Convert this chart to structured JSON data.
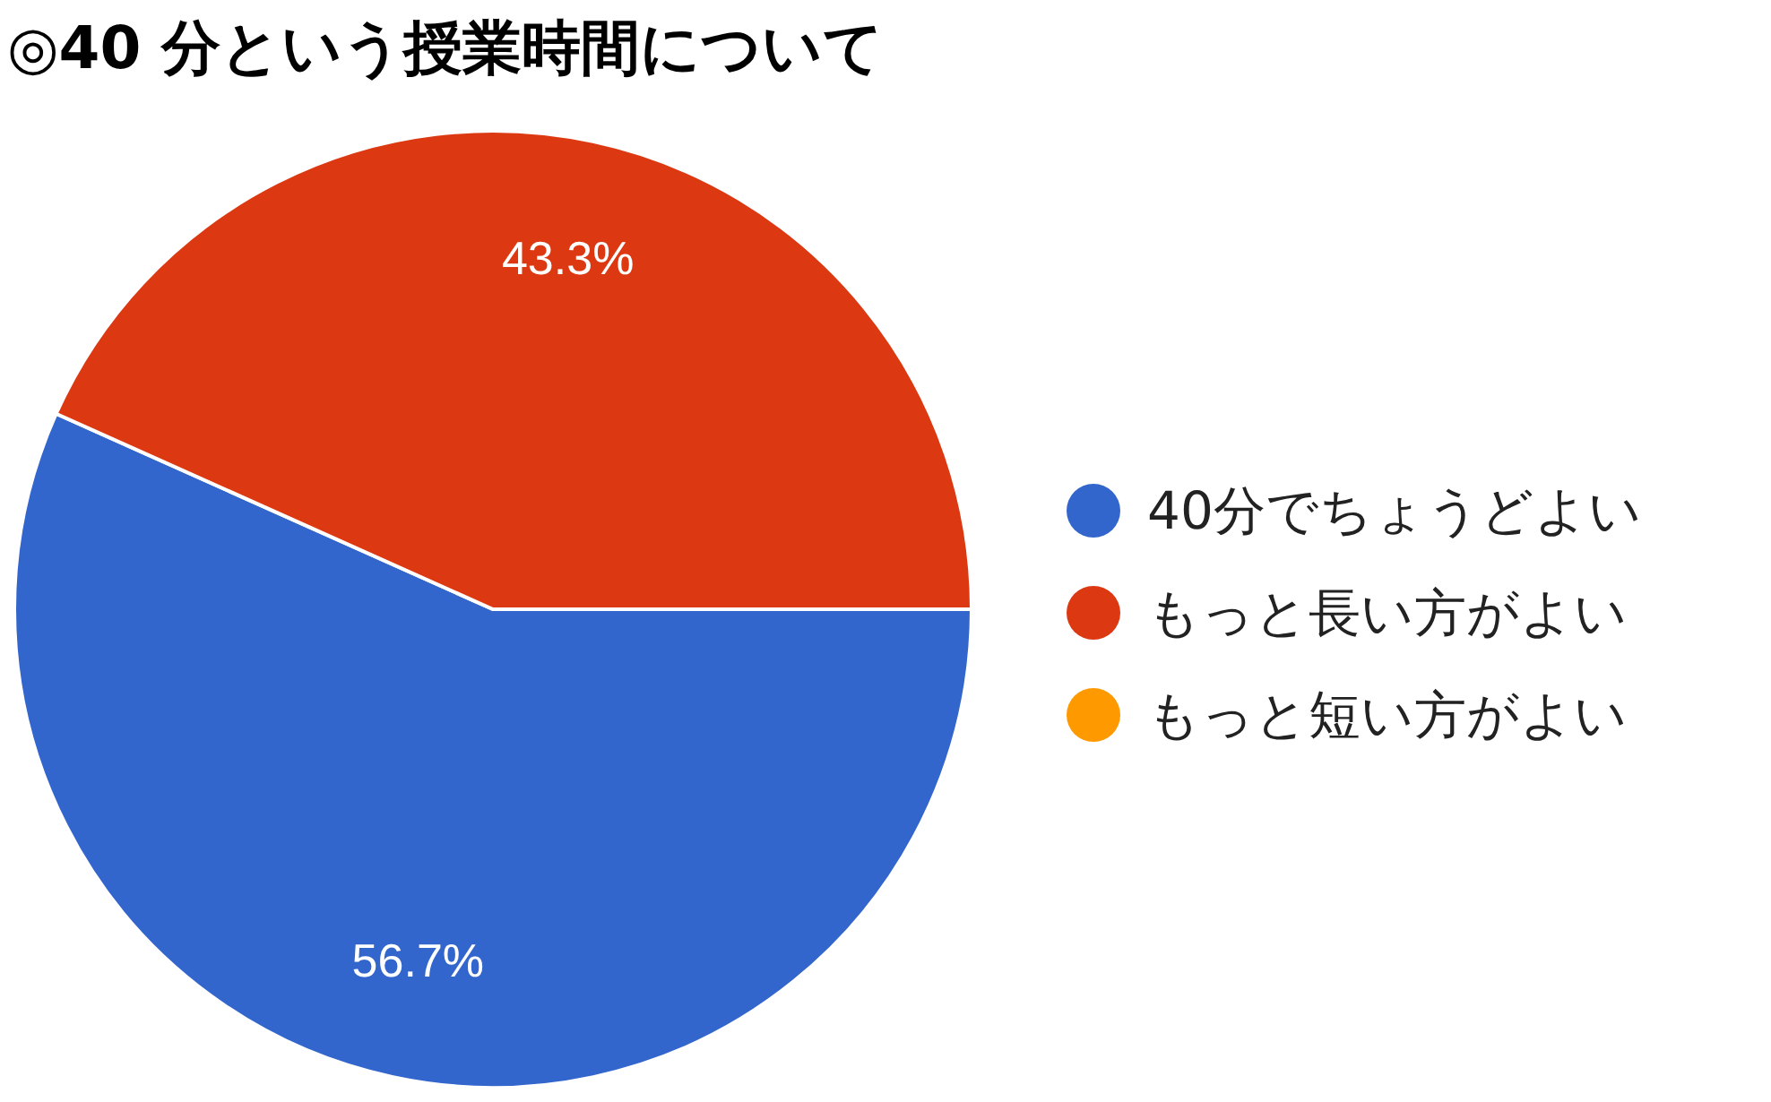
{
  "chart_data": {
    "type": "pie",
    "title": "◎40 分という授業時間について",
    "categories": [
      "40分でちょうどよい",
      "もっと長い方がよい",
      "もっと短い方がよい"
    ],
    "values": [
      56.7,
      43.3,
      0
    ],
    "colors": [
      "#3366cc",
      "#dc3912",
      "#ff9900"
    ],
    "value_labels": [
      "56.7%",
      "43.3%",
      null
    ],
    "legend": "right"
  }
}
